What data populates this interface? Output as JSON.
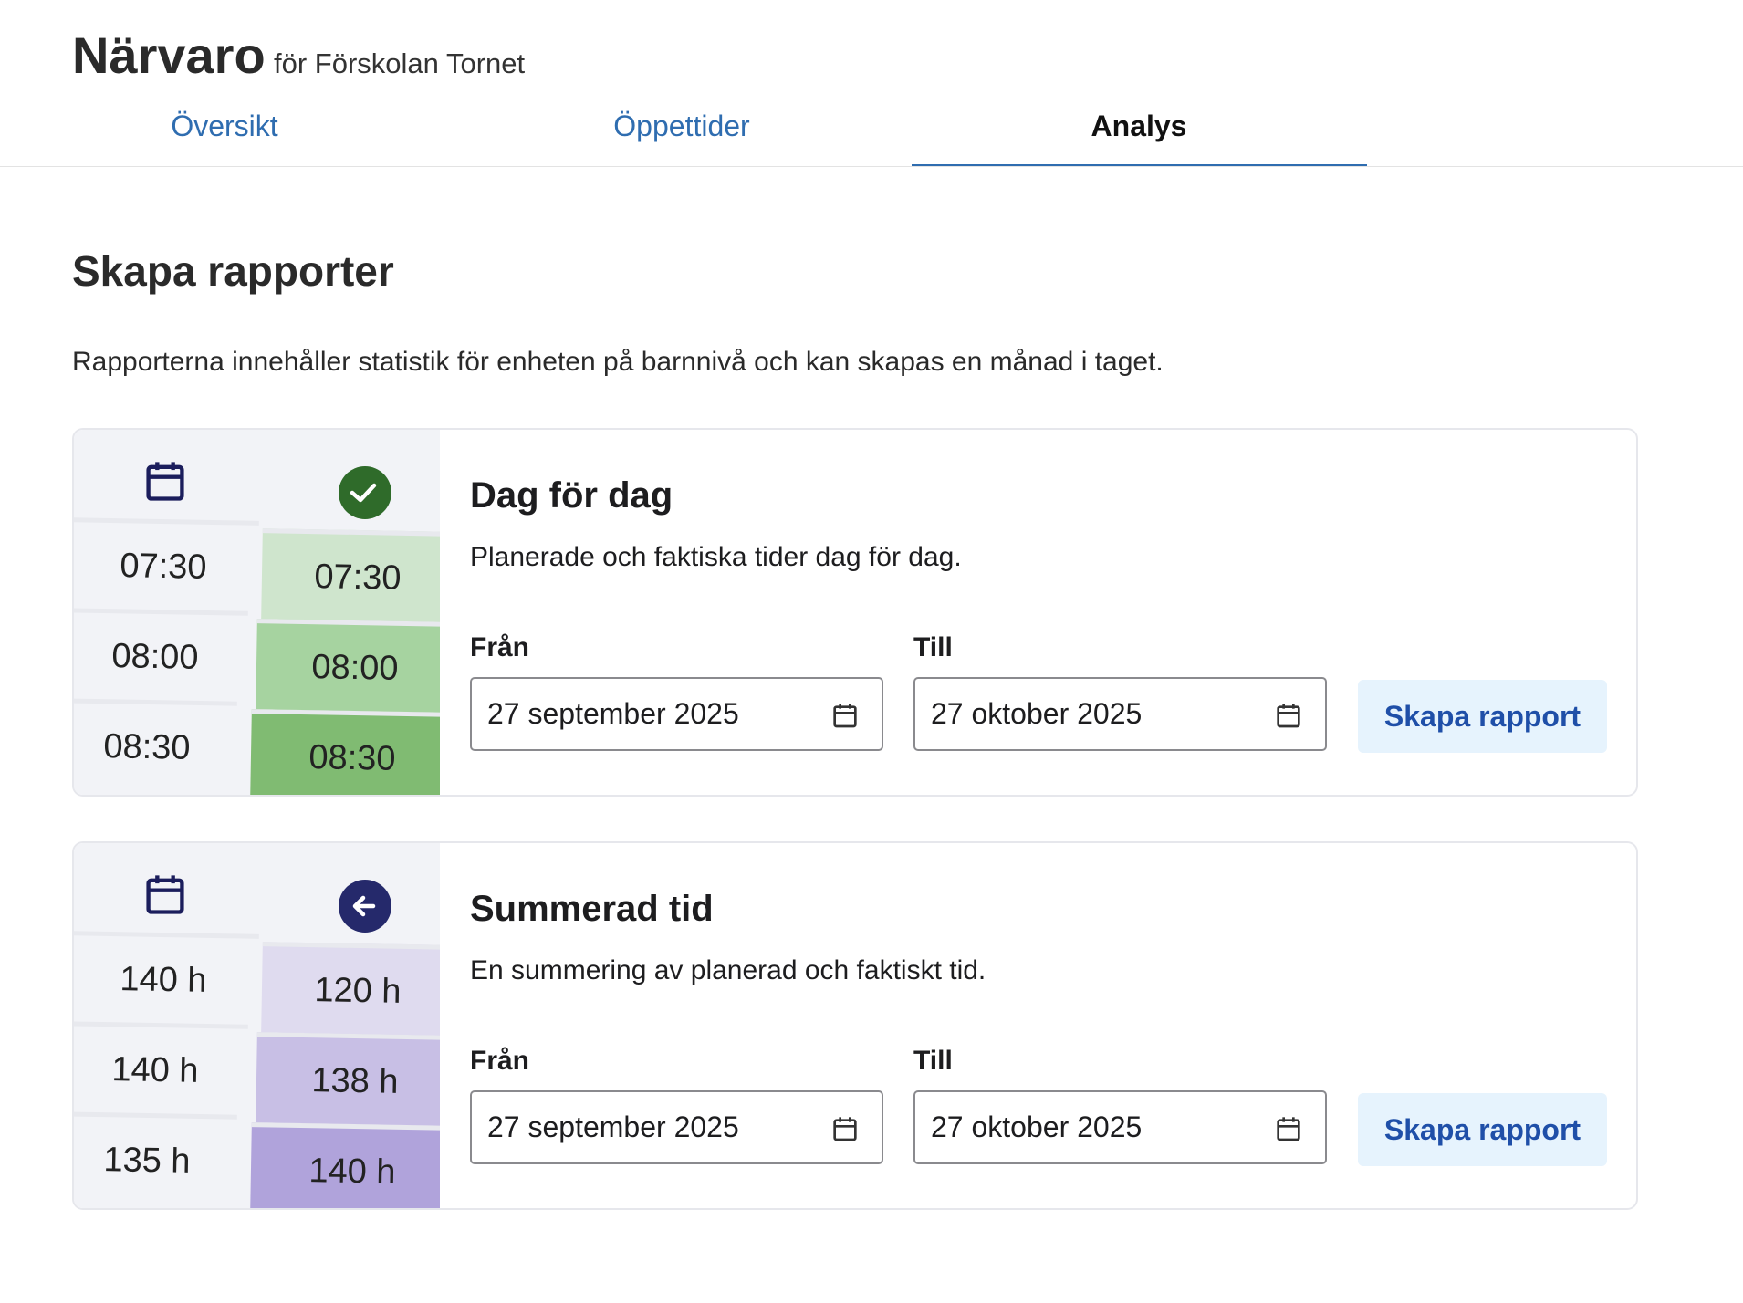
{
  "header": {
    "title": "Närvaro",
    "subtitle": "för Förskolan Tornet"
  },
  "tabs": [
    "Översikt",
    "Öppettider",
    "Analys"
  ],
  "section": {
    "title": "Skapa rapporter",
    "description": "Rapporterna innehåller statistik för enheten på barnnivå och kan skapas en månad i taget."
  },
  "cards": [
    {
      "title": "Dag för dag",
      "description": "Planerade och faktiska tider dag för dag.",
      "from_label": "Från",
      "from_value": "27 september 2025",
      "to_label": "Till",
      "to_value": "27 oktober 2025",
      "button": "Skapa rapport",
      "illustration": {
        "icon": "check",
        "icon_color": "#2f6b2a",
        "left": [
          "07:30",
          "08:00",
          "08:30"
        ],
        "right": [
          "07:30",
          "08:00",
          "08:30"
        ],
        "colors": [
          "#cfe5cd",
          "#a6d3a0",
          "#80bb72"
        ]
      }
    },
    {
      "title": "Summerad tid",
      "description": "En summering av planerad och faktiskt tid.",
      "from_label": "Från",
      "from_value": "27 september 2025",
      "to_label": "Till",
      "to_value": "27 oktober 2025",
      "button": "Skapa rapport",
      "illustration": {
        "icon": "arrow",
        "icon_color": "#25296b",
        "left": [
          "140 h",
          "140 h",
          "135 h"
        ],
        "right": [
          "120 h",
          "138 h",
          "140 h"
        ],
        "colors": [
          "#dfdbef",
          "#c8bfe5",
          "#b0a3db"
        ]
      }
    }
  ]
}
